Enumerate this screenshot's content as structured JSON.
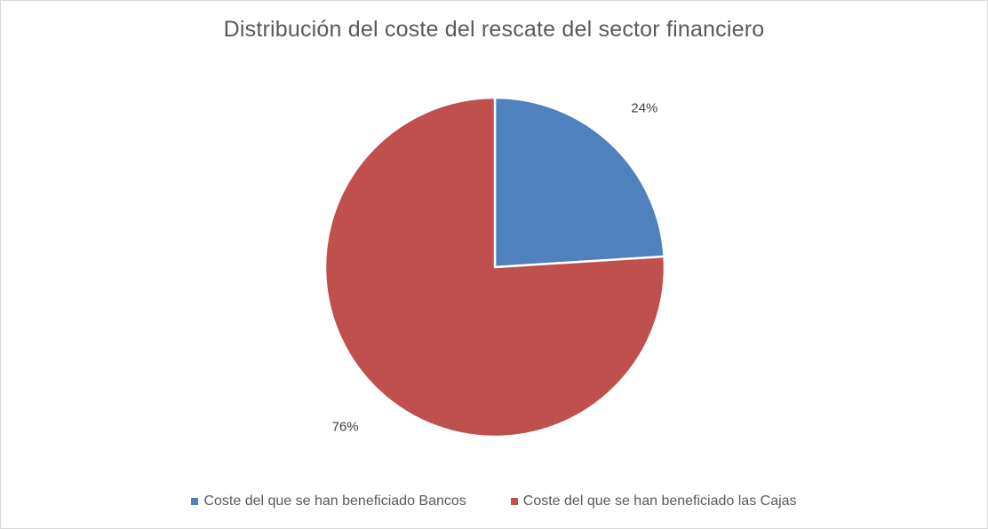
{
  "chart_data": {
    "type": "pie",
    "title": "Distribución del coste del rescate del sector financiero",
    "categories": [
      "Coste del que se han beneficiado Bancos",
      "Coste del que se han beneficiado las Cajas"
    ],
    "values": [
      24,
      76
    ],
    "data_labels": [
      "24%",
      "76%"
    ],
    "colors": [
      "#4f81bd",
      "#c0504d"
    ],
    "legend_position": "bottom",
    "start_angle": "12 o'clock, clockwise"
  }
}
